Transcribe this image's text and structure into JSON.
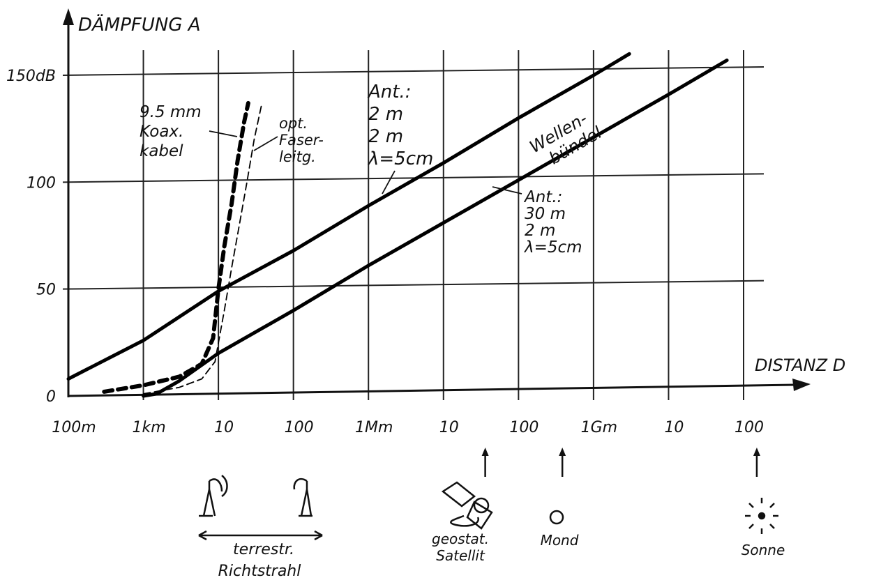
{
  "chart_data": {
    "type": "line",
    "ylabel": "DÄMPFUNG A",
    "xlabel": "DISTANZ D",
    "x_scale": "log",
    "xlim_m": [
      100,
      100000000000
    ],
    "ylim_dB": [
      0,
      150
    ],
    "x_ticks": [
      {
        "m": 100,
        "label": "100m"
      },
      {
        "m": 1000,
        "label": "1km"
      },
      {
        "m": 10000,
        "label": "10"
      },
      {
        "m": 100000,
        "label": "100"
      },
      {
        "m": 1000000,
        "label": "1Mm"
      },
      {
        "m": 10000000,
        "label": "10"
      },
      {
        "m": 100000000,
        "label": "100"
      },
      {
        "m": 1000000000,
        "label": "1Gm"
      },
      {
        "m": 10000000000,
        "label": "10"
      },
      {
        "m": 100000000000,
        "label": "100"
      }
    ],
    "y_ticks": [
      {
        "v": 0,
        "label": "0"
      },
      {
        "v": 50,
        "label": "50"
      },
      {
        "v": 100,
        "label": "100"
      },
      {
        "v": 150,
        "label": "150dB"
      }
    ],
    "grid": true,
    "series": [
      {
        "style": "thick-solid",
        "labels": [
          "Ant.:",
          "2 m",
          "2 m",
          "λ=5cm"
        ],
        "points": [
          [
            100,
            8
          ],
          [
            1000,
            26
          ],
          [
            10000,
            49
          ],
          [
            100000,
            68
          ],
          [
            1000000,
            89
          ],
          [
            10000000,
            109
          ],
          [
            100000000,
            130
          ],
          [
            1000000000,
            150
          ],
          [
            3000000000,
            160
          ]
        ]
      },
      {
        "style": "thick-solid",
        "labels": [
          "Ant.:",
          "30 m",
          "2 m",
          "λ=5cm"
        ],
        "points": [
          [
            1000,
            0
          ],
          [
            1500,
            1
          ],
          [
            3000,
            7
          ],
          [
            10000,
            20
          ],
          [
            100000,
            40
          ],
          [
            1000000,
            61
          ],
          [
            10000000,
            81
          ],
          [
            100000000,
            101
          ],
          [
            1000000000,
            121
          ],
          [
            10000000000,
            141
          ],
          [
            60000000000,
            157
          ]
        ]
      },
      {
        "style": "thick-dashed",
        "labels": [
          "9.5 mm",
          "Koax.",
          "kabel"
        ],
        "points": [
          [
            300,
            2
          ],
          [
            1000,
            5
          ],
          [
            3000,
            9
          ],
          [
            6000,
            15
          ],
          [
            8500,
            27
          ],
          [
            10000,
            50
          ],
          [
            12000,
            70
          ],
          [
            15000,
            90
          ],
          [
            18000,
            110
          ],
          [
            22000,
            128
          ],
          [
            25000,
            137
          ]
        ]
      },
      {
        "style": "thin-dashed",
        "labels": [
          "opt.",
          "Faser-",
          "leitg."
        ],
        "points": [
          [
            1000,
            1
          ],
          [
            3000,
            4
          ],
          [
            6000,
            8
          ],
          [
            9000,
            16
          ],
          [
            12000,
            40
          ],
          [
            15000,
            60
          ],
          [
            19000,
            80
          ],
          [
            24000,
            100
          ],
          [
            30000,
            120
          ],
          [
            38000,
            137
          ]
        ]
      }
    ],
    "annotations": {
      "wellen": [
        "Wellen-",
        "bündel"
      ],
      "markers": [
        {
          "m": 36000000,
          "lines": [
            "geostat.",
            "Satellit"
          ]
        },
        {
          "m": 384000000,
          "lines": [
            "Mond"
          ]
        },
        {
          "m": 150000000000,
          "lines": [
            "Sonne"
          ]
        }
      ],
      "terrestrial": [
        "terrestr.",
        "Richtstrahl"
      ]
    }
  }
}
